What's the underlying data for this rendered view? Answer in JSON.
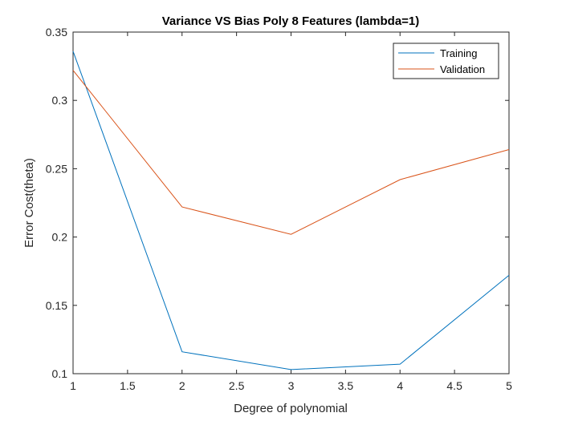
{
  "chart_data": {
    "type": "line",
    "title": "Variance VS Bias Poly 8 Features (lambda=1)",
    "xlabel": "Degree of polynomial",
    "ylabel": "Error Cost(theta)",
    "xlim": [
      1,
      5
    ],
    "ylim": [
      0.1,
      0.35
    ],
    "xticks": [
      1,
      1.5,
      2,
      2.5,
      3,
      3.5,
      4,
      4.5,
      5
    ],
    "xtick_labels": [
      "1",
      "1.5",
      "2",
      "2.5",
      "3",
      "3.5",
      "4",
      "4.5",
      "5"
    ],
    "yticks": [
      0.1,
      0.15,
      0.2,
      0.25,
      0.3,
      0.35
    ],
    "ytick_labels": [
      "0.1",
      "0.15",
      "0.2",
      "0.25",
      "0.3",
      "0.35"
    ],
    "grid": false,
    "legend_position": "top-right",
    "x": [
      1,
      2,
      3,
      4,
      5
    ],
    "series": [
      {
        "name": "Training",
        "color": "#0072BD",
        "values": [
          0.336,
          0.116,
          0.103,
          0.107,
          0.172
        ]
      },
      {
        "name": "Validation",
        "color": "#D95319",
        "values": [
          0.322,
          0.222,
          0.202,
          0.242,
          0.264
        ]
      }
    ]
  }
}
